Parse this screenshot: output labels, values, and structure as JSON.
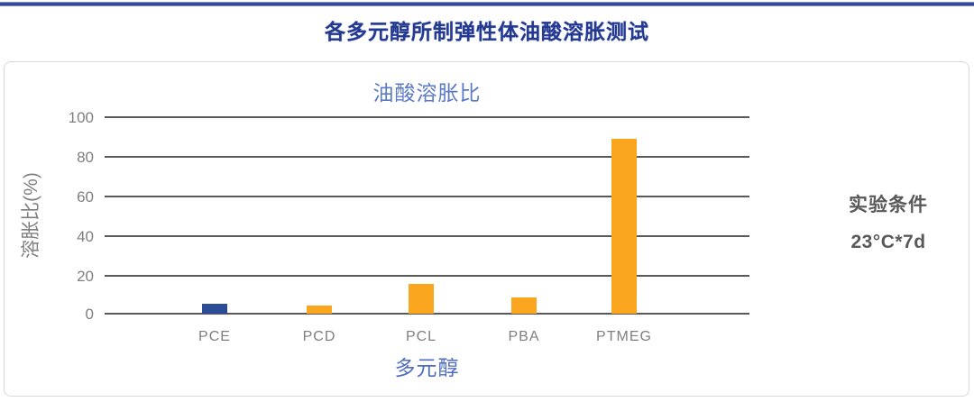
{
  "header": {
    "title": "各多元醇所制弹性体油酸溶胀测试"
  },
  "annotation": {
    "label": "实验条件",
    "value": "23°C*7d"
  },
  "colors": {
    "title_navy": "#24398F",
    "top_rule_navy": "#2E4196",
    "chart_title_blue": "#5C7AC5",
    "axis_label_blue": "#4F6EC0",
    "grid_gray": "#595959",
    "tick_gray": "#7F7F7F",
    "bar_orange": "#FAA71F",
    "bar_blue": "#2D4C97",
    "panel_border_gray": "#D9D9D9",
    "condition_text_gray": "#595959"
  },
  "chart_data": {
    "type": "bar",
    "title": "油酸溶胀比",
    "xlabel": "多元醇",
    "ylabel": "溶胀比(%)",
    "categories": [
      "PCE",
      "PCD",
      "PCL",
      "PBA",
      "PTMEG"
    ],
    "values": [
      5,
      4,
      15,
      8,
      88
    ],
    "bar_colors": [
      "#2D4C97",
      "#FAA71F",
      "#FAA71F",
      "#FAA71F",
      "#FAA71F"
    ],
    "ylim": [
      0,
      100
    ],
    "yticks": [
      0,
      20,
      40,
      60,
      80,
      100
    ],
    "grid": "horizontal-only",
    "legend": "none"
  }
}
